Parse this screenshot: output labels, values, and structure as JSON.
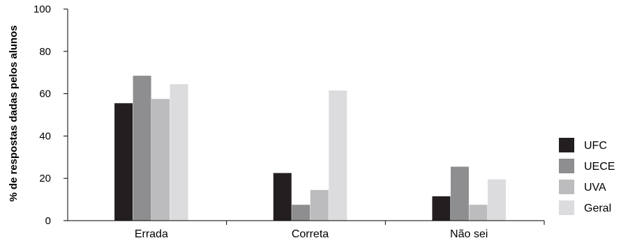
{
  "chart_data": {
    "type": "bar",
    "title": "",
    "xlabel": "",
    "ylabel": "% de respostas dadas pelos alunos",
    "ylim": [
      0,
      100
    ],
    "yticks": [
      0,
      20,
      40,
      60,
      80,
      100
    ],
    "categories": [
      "Errada",
      "Correta",
      "Não sei"
    ],
    "series": [
      {
        "name": "UFC",
        "color": "#231f20",
        "values": [
          55.5,
          22.5,
          11.5
        ]
      },
      {
        "name": "UECE",
        "color": "#8e8e90",
        "values": [
          68.5,
          7.5,
          25.5
        ]
      },
      {
        "name": "UVA",
        "color": "#bcbcbe",
        "values": [
          57.5,
          14.5,
          7.5
        ]
      },
      {
        "name": "Geral",
        "color": "#dcdcde",
        "values": [
          64.5,
          61.5,
          19.5
        ]
      }
    ],
    "grid": false,
    "legend_position": "right"
  }
}
